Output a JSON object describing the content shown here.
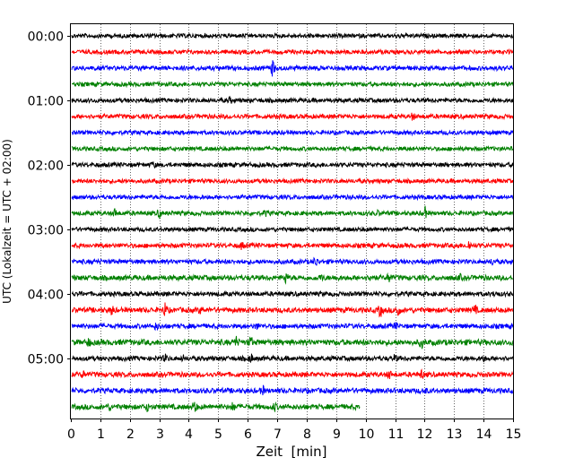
{
  "chart_data": {
    "type": "line",
    "title": "",
    "xlabel": "Zeit  [min]",
    "ylabel": "UTC (Lokalzeit = UTC + 02:00)",
    "xlim": [
      0,
      15
    ],
    "x_ticks": [
      "0",
      "1",
      "2",
      "3",
      "4",
      "5",
      "6",
      "7",
      "8",
      "9",
      "10",
      "11",
      "12",
      "13",
      "14",
      "15"
    ],
    "y_ticks": [
      "00:00",
      "01:00",
      "02:00",
      "03:00",
      "04:00",
      "05:00"
    ],
    "y_tick_traces": [
      0,
      4,
      8,
      12,
      16,
      20
    ],
    "vertical_grid": "dotted, every 1 min",
    "colors": [
      "#000000",
      "#ff0000",
      "#0000ff",
      "#008000"
    ],
    "traces": [
      {
        "start": "00:00",
        "end_min": 15,
        "noise": 0.35,
        "events": [
          {
            "t": 11.1,
            "amp": 1.0
          }
        ]
      },
      {
        "start": "00:15",
        "end_min": 15,
        "noise": 0.35,
        "events": []
      },
      {
        "start": "00:30",
        "end_min": 15,
        "noise": 0.45,
        "events": [
          {
            "t": 6.85,
            "amp": 4.6
          }
        ]
      },
      {
        "start": "00:45",
        "end_min": 15,
        "noise": 0.35,
        "events": []
      },
      {
        "start": "01:00",
        "end_min": 15,
        "noise": 0.4,
        "events": [
          {
            "t": 5.4,
            "amp": 1.2
          }
        ]
      },
      {
        "start": "01:15",
        "end_min": 15,
        "noise": 0.4,
        "events": [
          {
            "t": 11.6,
            "amp": 1.6
          }
        ]
      },
      {
        "start": "01:30",
        "end_min": 15,
        "noise": 0.35,
        "events": []
      },
      {
        "start": "01:45",
        "end_min": 15,
        "noise": 0.35,
        "events": []
      },
      {
        "start": "02:00",
        "end_min": 15,
        "noise": 0.4,
        "events": [
          {
            "t": 2.8,
            "amp": 1.2
          }
        ]
      },
      {
        "start": "02:15",
        "end_min": 15,
        "noise": 0.35,
        "events": []
      },
      {
        "start": "02:30",
        "end_min": 15,
        "noise": 0.35,
        "events": []
      },
      {
        "start": "02:45",
        "end_min": 15,
        "noise": 0.4,
        "events": [
          {
            "t": 1.5,
            "amp": 2.0
          },
          {
            "t": 3.0,
            "amp": 2.2
          },
          {
            "t": 6.6,
            "amp": 1.2
          },
          {
            "t": 10.4,
            "amp": 1.0
          },
          {
            "t": 12.0,
            "amp": 3.4
          }
        ]
      },
      {
        "start": "03:00",
        "end_min": 15,
        "noise": 0.35,
        "events": []
      },
      {
        "start": "03:15",
        "end_min": 15,
        "noise": 0.45,
        "events": [
          {
            "t": 5.8,
            "amp": 1.6
          },
          {
            "t": 13.1,
            "amp": 1.2
          },
          {
            "t": 13.5,
            "amp": 2.4
          }
        ]
      },
      {
        "start": "03:30",
        "end_min": 15,
        "noise": 0.45,
        "events": [
          {
            "t": 8.3,
            "amp": 2.6
          },
          {
            "t": 14.3,
            "amp": 1.2
          }
        ]
      },
      {
        "start": "03:45",
        "end_min": 15,
        "noise": 0.6,
        "events": [
          {
            "t": 7.3,
            "amp": 2.8
          },
          {
            "t": 8.5,
            "amp": 1.2
          },
          {
            "t": 9.0,
            "amp": 1.2
          },
          {
            "t": 10.2,
            "amp": 2.2
          },
          {
            "t": 10.8,
            "amp": 2.4
          },
          {
            "t": 13.2,
            "amp": 1.0
          }
        ]
      },
      {
        "start": "04:00",
        "end_min": 15,
        "noise": 0.45,
        "events": [
          {
            "t": 14.4,
            "amp": 1.4
          }
        ]
      },
      {
        "start": "04:15",
        "end_min": 15,
        "noise": 0.6,
        "events": [
          {
            "t": 1.4,
            "amp": 2.4
          },
          {
            "t": 3.2,
            "amp": 3.6
          },
          {
            "t": 4.4,
            "amp": 1.4
          },
          {
            "t": 10.5,
            "amp": 3.4
          },
          {
            "t": 11.1,
            "amp": 3.8
          },
          {
            "t": 13.7,
            "amp": 2.4
          }
        ]
      },
      {
        "start": "04:30",
        "end_min": 15,
        "noise": 0.5,
        "events": [
          {
            "t": 2.9,
            "amp": 1.6
          },
          {
            "t": 6.3,
            "amp": 1.2
          },
          {
            "t": 11.0,
            "amp": 1.4
          }
        ]
      },
      {
        "start": "04:45",
        "end_min": 15,
        "noise": 0.75,
        "events": [
          {
            "t": 0.6,
            "amp": 2.0
          },
          {
            "t": 5.6,
            "amp": 2.6
          },
          {
            "t": 6.1,
            "amp": 2.2
          },
          {
            "t": 11.9,
            "amp": 2.4
          }
        ]
      },
      {
        "start": "05:00",
        "end_min": 15,
        "noise": 0.5,
        "events": [
          {
            "t": 3.2,
            "amp": 1.8
          },
          {
            "t": 3.8,
            "amp": 1.0
          },
          {
            "t": 6.1,
            "amp": 2.2
          },
          {
            "t": 11.0,
            "amp": 1.6
          },
          {
            "t": 14.0,
            "amp": 1.2
          }
        ]
      },
      {
        "start": "05:15",
        "end_min": 15,
        "noise": 0.55,
        "events": [
          {
            "t": 0.4,
            "amp": 1.4
          },
          {
            "t": 10.8,
            "amp": 2.0
          },
          {
            "t": 11.9,
            "amp": 2.2
          }
        ]
      },
      {
        "start": "05:30",
        "end_min": 15,
        "noise": 0.6,
        "events": [
          {
            "t": 6.5,
            "amp": 2.2
          },
          {
            "t": 12.0,
            "amp": 1.2
          }
        ]
      },
      {
        "start": "05:45",
        "end_min": 9.8,
        "noise": 0.6,
        "events": [
          {
            "t": 1.3,
            "amp": 1.4
          },
          {
            "t": 2.6,
            "amp": 1.6
          },
          {
            "t": 4.2,
            "amp": 3.2
          },
          {
            "t": 5.5,
            "amp": 1.8
          },
          {
            "t": 6.9,
            "amp": 2.0
          }
        ]
      }
    ]
  }
}
